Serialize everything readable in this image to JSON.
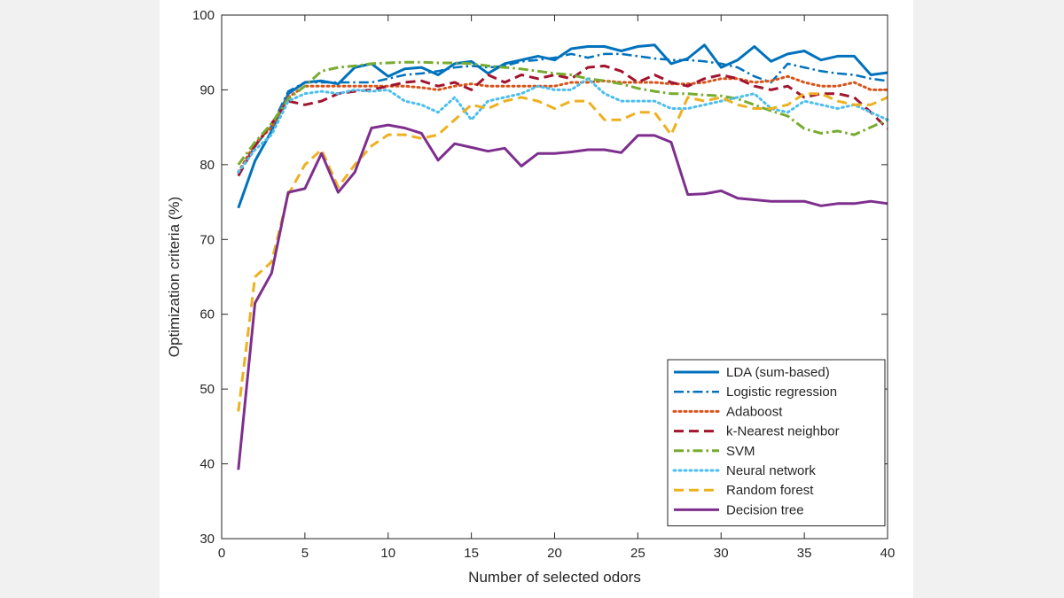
{
  "chart_data": {
    "type": "line",
    "title": "",
    "xlabel": "Number of selected odors",
    "ylabel": "Optimization criteria (%)",
    "xlim": [
      0,
      40
    ],
    "ylim": [
      30,
      100
    ],
    "xticks": [
      0,
      5,
      10,
      15,
      20,
      25,
      30,
      35,
      40
    ],
    "yticks": [
      30,
      40,
      50,
      60,
      70,
      80,
      90,
      100
    ],
    "grid": false,
    "legend_position": "bottom-right",
    "x": [
      1,
      2,
      3,
      4,
      5,
      6,
      7,
      8,
      9,
      10,
      11,
      12,
      13,
      14,
      15,
      16,
      17,
      18,
      19,
      20,
      21,
      22,
      23,
      24,
      25,
      26,
      27,
      28,
      29,
      30,
      31,
      32,
      33,
      34,
      35,
      36,
      37,
      38,
      39,
      40
    ],
    "series": [
      {
        "name": "LDA (sum-based)",
        "color": "#0072BD",
        "dash": "solid",
        "width": 3,
        "values": [
          74.2,
          80.5,
          84.5,
          89.5,
          91.0,
          91.2,
          90.8,
          93.0,
          93.5,
          91.8,
          92.8,
          93.0,
          92.0,
          93.5,
          93.8,
          92.2,
          93.5,
          94.0,
          94.5,
          94.0,
          95.5,
          95.8,
          95.8,
          95.2,
          95.8,
          96.0,
          93.5,
          94.2,
          96.0,
          93.0,
          94.0,
          95.8,
          93.8,
          94.8,
          95.2,
          94.0,
          94.5,
          94.5,
          92.0,
          92.3
        ]
      },
      {
        "name": "Logistic regression",
        "color": "#0072BD",
        "dash": "dashdot",
        "width": 2.5,
        "values": [
          78.5,
          82.5,
          85.2,
          89.8,
          91.0,
          91.0,
          91.0,
          91.0,
          91.0,
          91.5,
          92.0,
          92.2,
          92.5,
          93.0,
          93.2,
          93.0,
          93.2,
          93.8,
          94.0,
          94.3,
          94.8,
          94.3,
          94.8,
          94.8,
          94.5,
          94.2,
          94.0,
          94.0,
          93.8,
          93.5,
          93.0,
          91.8,
          91.0,
          93.5,
          93.0,
          92.5,
          92.2,
          92.0,
          91.5,
          91.2
        ]
      },
      {
        "name": "Adaboost",
        "color": "#D95319",
        "dash": "dotted",
        "width": 3,
        "values": [
          79.0,
          82.8,
          85.0,
          89.0,
          90.5,
          90.5,
          90.5,
          90.5,
          90.5,
          90.5,
          90.5,
          90.3,
          90.0,
          90.5,
          90.8,
          90.5,
          90.5,
          90.5,
          90.5,
          90.5,
          91.0,
          91.0,
          91.2,
          91.0,
          91.0,
          91.0,
          90.8,
          90.8,
          91.0,
          91.5,
          91.5,
          91.0,
          91.2,
          91.8,
          91.0,
          90.5,
          90.5,
          91.0,
          90.0,
          90.0
        ]
      },
      {
        "name": "k-Nearest neighbor",
        "color": "#A2142F",
        "dash": "dashed",
        "width": 3,
        "values": [
          78.5,
          82.5,
          85.5,
          88.5,
          88.0,
          88.5,
          89.5,
          89.8,
          90.0,
          90.5,
          91.0,
          91.2,
          90.5,
          91.0,
          90.0,
          92.0,
          91.0,
          92.0,
          91.5,
          92.0,
          91.5,
          93.0,
          93.2,
          92.5,
          91.0,
          92.0,
          91.0,
          90.5,
          91.5,
          92.0,
          91.5,
          90.5,
          90.0,
          90.5,
          89.0,
          89.5,
          89.5,
          89.0,
          87.0,
          84.8
        ]
      },
      {
        "name": "SVM",
        "color": "#77AC30",
        "dash": "dashdot",
        "width": 3,
        "values": [
          80.0,
          83.0,
          85.5,
          88.8,
          90.5,
          92.5,
          93.0,
          93.2,
          93.5,
          93.6,
          93.7,
          93.7,
          93.6,
          93.6,
          93.5,
          93.2,
          93.0,
          92.8,
          92.5,
          92.2,
          92.0,
          91.5,
          91.2,
          90.8,
          90.2,
          89.8,
          89.5,
          89.5,
          89.3,
          89.2,
          88.8,
          88.0,
          87.2,
          86.5,
          84.8,
          84.2,
          84.5,
          84.0,
          85.0,
          86.0
        ]
      },
      {
        "name": "Neural network",
        "color": "#4DBEEE",
        "dash": "dotted",
        "width": 3,
        "values": [
          79.0,
          82.0,
          84.0,
          88.5,
          89.5,
          89.8,
          89.5,
          90.0,
          89.8,
          90.0,
          88.5,
          88.0,
          87.0,
          89.0,
          86.0,
          88.5,
          89.0,
          89.5,
          90.5,
          90.0,
          90.0,
          91.5,
          89.5,
          88.5,
          88.5,
          88.5,
          87.5,
          87.5,
          88.0,
          88.5,
          89.0,
          89.5,
          87.5,
          87.0,
          88.5,
          88.0,
          87.5,
          88.0,
          87.0,
          86.0
        ]
      },
      {
        "name": "Random forest",
        "color": "#EDB120",
        "dash": "dashed",
        "width": 3,
        "values": [
          47.0,
          65.0,
          67.0,
          76.0,
          80.0,
          82.0,
          77.0,
          80.0,
          82.5,
          84.0,
          84.0,
          83.5,
          84.0,
          86.0,
          88.0,
          87.5,
          88.5,
          89.0,
          88.5,
          87.5,
          88.5,
          88.5,
          86.0,
          86.0,
          87.0,
          87.0,
          84.0,
          89.0,
          88.5,
          89.0,
          88.0,
          87.5,
          87.5,
          88.0,
          89.5,
          89.5,
          88.5,
          88.0,
          88.0,
          89.0
        ]
      },
      {
        "name": "Decision tree",
        "color": "#7E2F8E",
        "dash": "solid",
        "width": 3,
        "values": [
          39.2,
          61.5,
          65.5,
          76.3,
          76.8,
          81.5,
          76.3,
          79.0,
          84.9,
          85.3,
          84.9,
          84.2,
          80.6,
          82.8,
          82.3,
          81.8,
          82.2,
          79.8,
          81.5,
          81.5,
          81.7,
          82.0,
          82.0,
          81.6,
          83.9,
          83.9,
          83.0,
          76.0,
          76.1,
          76.5,
          75.5,
          75.3,
          75.1,
          75.1,
          75.1,
          74.5,
          74.8,
          74.8,
          75.1,
          74.8
        ]
      }
    ]
  }
}
